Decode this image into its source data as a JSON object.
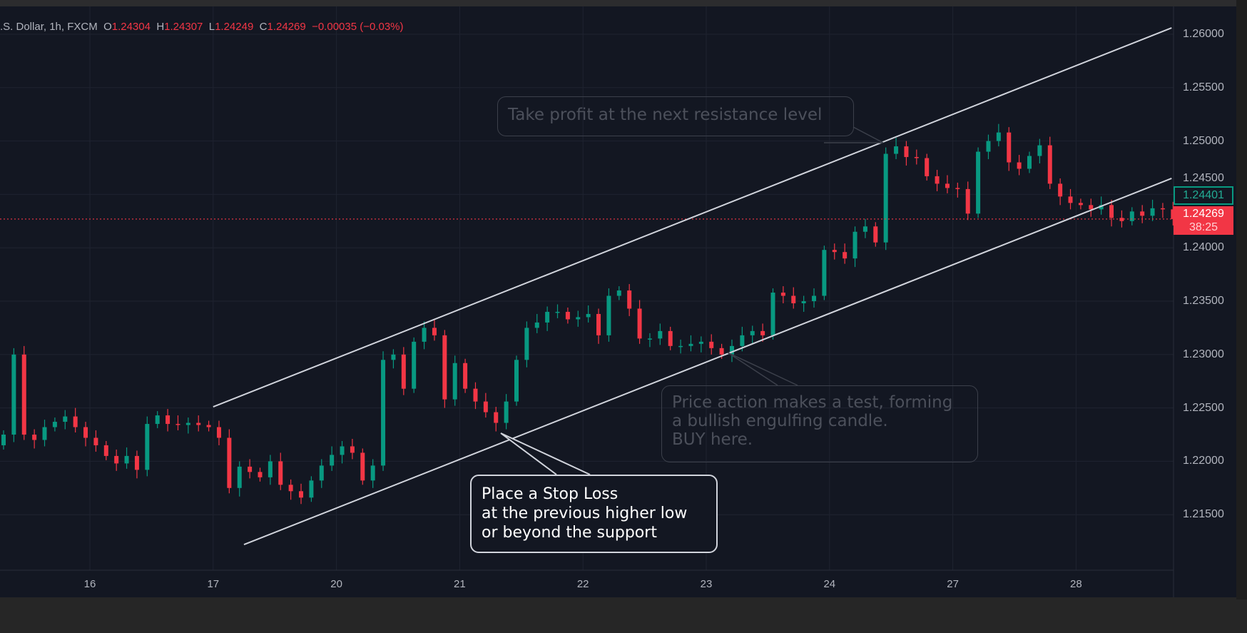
{
  "legend": {
    "symbol": ".S. Dollar, 1h, FXCM",
    "open_label": "O",
    "open": "1.24304",
    "high_label": "H",
    "high": "1.24307",
    "low_label": "L",
    "low": "1.24249",
    "close_label": "C",
    "close": "1.24269",
    "change": "−0.00035 (−0.03%)"
  },
  "price_axis": {
    "labels": [
      "1.26000",
      "1.25500",
      "1.25000",
      "1.24500",
      "1.24000",
      "1.23500",
      "1.23000",
      "1.22500",
      "1.22000",
      "1.21500"
    ],
    "bid_label": "1.24401",
    "last_price": "1.24269",
    "countdown": "38:25"
  },
  "colors": {
    "background": "#131722",
    "up": "#089981",
    "down": "#f23645",
    "grid": "#1f2330",
    "channel": "#d1d4dc"
  },
  "chart_data": {
    "type": "candlestick",
    "x_ticks": [
      "16",
      "17",
      "20",
      "21",
      "22",
      "23",
      "24",
      "27",
      "28"
    ],
    "y_ticks": [
      1.26,
      1.255,
      1.25,
      1.245,
      1.24,
      1.235,
      1.23,
      1.225,
      1.22,
      1.215
    ],
    "ylim": [
      1.2105,
      1.2635
    ],
    "grid": true,
    "first_open": 1.2215,
    "closes": [
      1.2225,
      1.23,
      1.2225,
      1.222,
      1.2232,
      1.2237,
      1.2242,
      1.2232,
      1.2222,
      1.2215,
      1.2205,
      1.2198,
      1.2205,
      1.2192,
      1.2235,
      1.2243,
      1.2235,
      1.2234,
      1.2236,
      1.2234,
      1.2232,
      1.2222,
      1.2175,
      1.2195,
      1.219,
      1.2185,
      1.22,
      1.2178,
      1.2172,
      1.2166,
      1.2182,
      1.2196,
      1.2206,
      1.2214,
      1.2208,
      1.2182,
      1.2196,
      1.2295,
      1.23,
      1.2268,
      1.2312,
      1.2325,
      1.2318,
      1.2258,
      1.2292,
      1.2268,
      1.2256,
      1.2246,
      1.2236,
      1.2256,
      1.2295,
      1.2325,
      1.233,
      1.234,
      1.234,
      1.2333,
      1.2335,
      1.2338,
      1.2318,
      1.2355,
      1.236,
      1.2343,
      1.2315,
      1.2315,
      1.2322,
      1.2308,
      1.2308,
      1.231,
      1.2312,
      1.2306,
      1.23,
      1.2308,
      1.2318,
      1.2322,
      1.2318,
      1.2358,
      1.2355,
      1.2348,
      1.235,
      1.2355,
      1.2398,
      1.2396,
      1.239,
      1.2415,
      1.242,
      1.2405,
      1.2488,
      1.2495,
      1.2485,
      1.2484,
      1.2467,
      1.246,
      1.2456,
      1.2455,
      1.2432,
      1.249,
      1.25,
      1.2508,
      1.248,
      1.2474,
      1.2486,
      1.2496,
      1.246,
      1.2448,
      1.2442,
      1.244,
      1.2436,
      1.244,
      1.2428,
      1.2425,
      1.2434,
      1.243,
      1.2437,
      1.2436,
      1.24269
    ],
    "last_price_line": 1.24269,
    "channel": {
      "upper": [
        {
          "date": "17",
          "hour": 0,
          "price": 1.2251
        },
        {
          "date": "28",
          "hour": 18.6,
          "price": 1.2606
        }
      ],
      "lower": [
        {
          "date": "17",
          "hour": 6,
          "price": 1.2122
        },
        {
          "date": "28",
          "hour": 18.6,
          "price": 1.2465
        }
      ]
    }
  },
  "callouts": {
    "take_profit": "Take profit at the next resistance level",
    "entry": [
      "Price action makes a test, forming",
      "a bullish engulfing candle.",
      "BUY here."
    ],
    "stop_loss": [
      "Place a Stop Loss",
      "at the previous higher low",
      "or beyond the support"
    ]
  }
}
